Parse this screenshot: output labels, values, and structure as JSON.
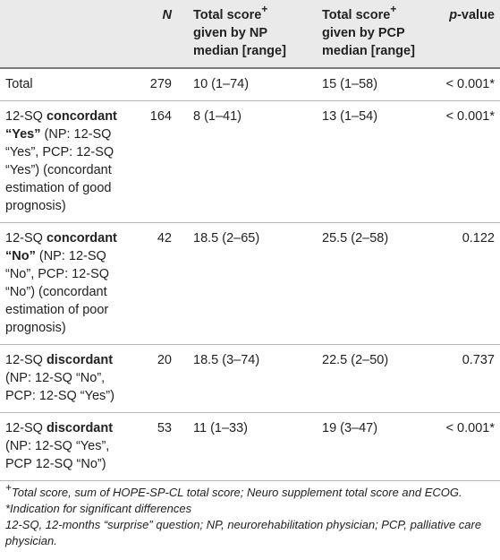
{
  "header": {
    "n": "N",
    "np_line1": "Total score",
    "np_sup": "+",
    "np_line2": "given by NP",
    "np_line3": "median [range]",
    "pcp_line1": "Total score",
    "pcp_sup": "+",
    "pcp_line2": "given by PCP",
    "pcp_line3": "median [range]",
    "p_italic": "p",
    "p_rest": "-value"
  },
  "rows": [
    {
      "cat_plain": "Total",
      "n": "279",
      "np": "10 (1–74)",
      "pcp": "15 (1–58)",
      "p": "< 0.001*"
    },
    {
      "cat_pre": "12-SQ ",
      "cat_bold": "concordant “Yes”",
      "cat_post": " (NP: 12-SQ “Yes”, PCP: 12-SQ “Yes”) (concordant estimation of good prognosis)",
      "n": "164",
      "np": "8 (1–41)",
      "pcp": "13 (1–54)",
      "p": "< 0.001*"
    },
    {
      "cat_pre": "12-SQ ",
      "cat_bold": "concordant “No”",
      "cat_post": " (NP: 12-SQ “No”, PCP: 12-SQ “No”) (concordant estimation of poor prognosis)",
      "n": "42",
      "np": "18.5 (2–65)",
      "pcp": "25.5 (2–58)",
      "p": "0.122"
    },
    {
      "cat_pre": "12-SQ ",
      "cat_bold": "discordant",
      "cat_post": " (NP: 12-SQ “No”, PCP: 12-SQ “Yes”)",
      "n": "20",
      "np": "18.5 (3–74)",
      "pcp": "22.5 (2–50)",
      "p": "0.737"
    },
    {
      "cat_pre": "12-SQ ",
      "cat_bold": "discordant",
      "cat_post": " (NP: 12-SQ “Yes”, PCP 12-SQ “No”)",
      "n": "53",
      "np": "11 (1–33)",
      "pcp": "19 (3–47)",
      "p": "< 0.001*"
    }
  ],
  "footnotes": {
    "note1_sym": "+",
    "note1_text": "Total score, sum of HOPE-SP-CL total score; Neuro supplement total score and ECOG.",
    "note2": "*Indication for significant differences",
    "note3": "12-SQ, 12-months “surprise” question; NP, neurorehabilitation physician; PCP, palliative care physician."
  }
}
